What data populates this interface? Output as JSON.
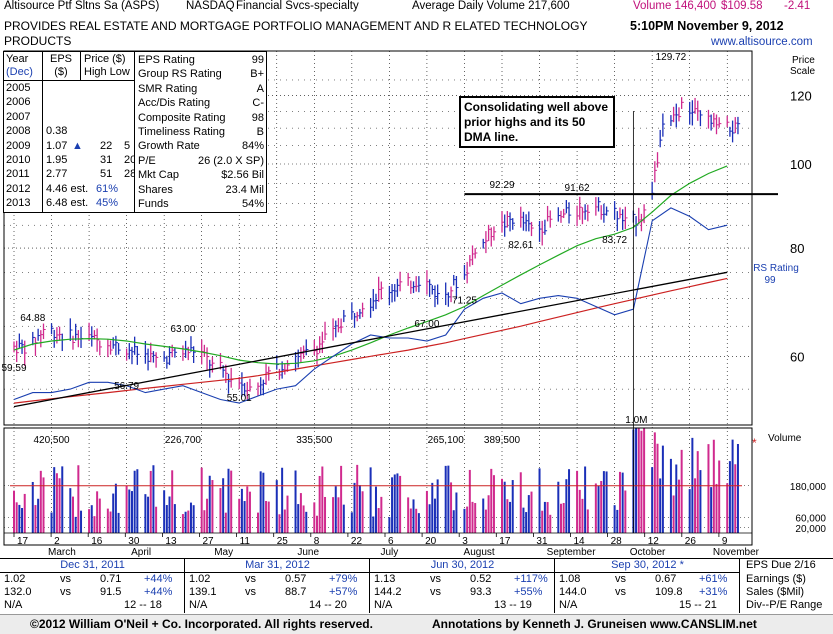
{
  "header": {
    "company": "Altisource Ptf Sltns Sa (ASPS)",
    "exchange": "NASDAQ",
    "industry": "Financial Svcs-specialty",
    "avg_volume": "Average Daily Volume 217,600",
    "volume": "Volume 146,400",
    "price": "$109.58",
    "change": "-2.41",
    "description_line1": "PROVIDES REAL ESTATE AND MORTGAGE PORTFOLIO MANAGEMENT AND R ELATED TECHNOLOGY",
    "description_line2": "PRODUCTS",
    "datetime": "5:10PM November 9, 2012",
    "website": "www.altisource.com"
  },
  "annual_table": {
    "headers": [
      [
        "Year",
        "(Dec)"
      ],
      [
        "EPS",
        "($)"
      ],
      [
        "Price ($)",
        "High Low"
      ]
    ],
    "rows": [
      {
        "year": "2005",
        "eps": "",
        "mark": "",
        "high": "",
        "low": ""
      },
      {
        "year": "2006",
        "eps": "",
        "mark": "",
        "high": "",
        "low": ""
      },
      {
        "year": "2007",
        "eps": "",
        "mark": "",
        "high": "",
        "low": ""
      },
      {
        "year": "2008",
        "eps": "0.38",
        "mark": "",
        "high": "",
        "low": ""
      },
      {
        "year": "2009",
        "eps": "1.07",
        "mark": "▲",
        "high": "22",
        "low": "5"
      },
      {
        "year": "2010",
        "eps": "1.95",
        "mark": "",
        "high": "31",
        "low": "20"
      },
      {
        "year": "2011",
        "eps": "2.77",
        "mark": "",
        "high": "51",
        "low": "28"
      },
      {
        "year": "2012",
        "eps": "4.46 est.",
        "mark": "61%",
        "high": "",
        "low": ""
      },
      {
        "year": "2013",
        "eps": "6.48 est.",
        "mark": "45%",
        "high": "",
        "low": ""
      }
    ]
  },
  "ratings": [
    {
      "label": "EPS Rating",
      "value": "99"
    },
    {
      "label": "Group RS Rating",
      "value": "B+"
    },
    {
      "label": "SMR Rating",
      "value": "A"
    },
    {
      "label": "Acc/Dis Rating",
      "value": "C-"
    },
    {
      "label": "Composite Rating",
      "value": "98"
    },
    {
      "label": "Timeliness Rating",
      "value": "B"
    },
    {
      "label": "Growth Rate",
      "value": "84%"
    },
    {
      "label": "P/E",
      "value": "26 (2.0 X SP)"
    },
    {
      "label": "Mkt Cap",
      "value": "$2.56 Bil"
    },
    {
      "label": "Shares",
      "value": "23.4 Mil"
    },
    {
      "label": "Funds",
      "value": "54%"
    }
  ],
  "annotation": "Consolidating well above prior highs and its 50 DMA line.",
  "chart_data": [
    {
      "type": "line",
      "name": "price-panel",
      "y_axis_title": "Price Scale",
      "ylim": [
        50,
        135
      ],
      "log_scale": true,
      "y_ticks": [
        60,
        80,
        100,
        120
      ],
      "x_start": "2012-02-13",
      "x_end": "2012-11-09",
      "price_series": {
        "dates": [
          "2012-02-13",
          "2012-02-20",
          "2012-02-27",
          "2012-03-05",
          "2012-03-12",
          "2012-03-19",
          "2012-03-26",
          "2012-04-02",
          "2012-04-09",
          "2012-04-16",
          "2012-04-23",
          "2012-04-30",
          "2012-05-07",
          "2012-05-14",
          "2012-05-21",
          "2012-05-28",
          "2012-06-04",
          "2012-06-11",
          "2012-06-18",
          "2012-06-25",
          "2012-07-02",
          "2012-07-09",
          "2012-07-16",
          "2012-07-23",
          "2012-07-30",
          "2012-08-06",
          "2012-08-13",
          "2012-08-20",
          "2012-08-27",
          "2012-09-03",
          "2012-09-10",
          "2012-09-17",
          "2012-09-24",
          "2012-10-01",
          "2012-10-08",
          "2012-10-15",
          "2012-10-22",
          "2012-10-29",
          "2012-11-05"
        ],
        "close": [
          61.5,
          64.5,
          63.5,
          63.0,
          62.5,
          61.5,
          60.5,
          59.5,
          60.5,
          61.0,
          58.5,
          56.5,
          55.0,
          57.5,
          59.0,
          60.5,
          63.0,
          66.5,
          69.0,
          71.5,
          72.5,
          73.5,
          70.5,
          73.0,
          80.0,
          84.5,
          86.5,
          84.0,
          86.0,
          88.0,
          89.5,
          88.5,
          85.5,
          88.0,
          110.0,
          116.0,
          113.0,
          110.0,
          109.58
        ]
      },
      "ma50": [
        61.0,
        62.0,
        62.5,
        62.8,
        62.9,
        62.8,
        62.5,
        62.0,
        61.6,
        61.2,
        60.7,
        60.1,
        59.4,
        59.0,
        58.8,
        58.9,
        59.3,
        60.0,
        61.0,
        62.2,
        63.5,
        64.7,
        65.8,
        67.0,
        68.5,
        70.5,
        72.5,
        74.5,
        76.5,
        78.5,
        80.5,
        82.0,
        83.0,
        84.5,
        88.0,
        92.0,
        95.0,
        97.5,
        99.5
      ],
      "ma200": [
        53.0,
        53.3,
        53.6,
        53.9,
        54.2,
        54.5,
        54.8,
        55.1,
        55.4,
        55.7,
        56.0,
        56.3,
        56.6,
        57.0,
        57.5,
        58.0,
        58.5,
        59.0,
        59.5,
        60.0,
        60.5,
        61.0,
        61.6,
        62.2,
        62.9,
        63.6,
        64.3,
        65.0,
        65.8,
        66.6,
        67.4,
        68.2,
        69.0,
        69.8,
        70.6,
        71.4,
        72.2,
        73.0,
        73.8
      ],
      "rs_line": [
        53.5,
        54.5,
        54.5,
        55.0,
        56.0,
        56.0,
        55.5,
        54.5,
        55.0,
        55.5,
        54.5,
        53.5,
        53.0,
        54.0,
        55.0,
        55.5,
        58.0,
        60.0,
        62.0,
        63.5,
        63.0,
        63.0,
        62.5,
        63.5,
        68.0,
        70.0,
        71.0,
        69.0,
        70.0,
        70.5,
        70.0,
        68.5,
        67.0,
        68.0,
        86.0,
        89.0,
        87.0,
        84.0,
        85.0
      ],
      "price_labels": [
        {
          "text": "64.88",
          "date": "2012-02-20",
          "value": 64.88,
          "pos": "above"
        },
        {
          "text": "59.59",
          "date": "2012-02-13",
          "value": 59.59,
          "pos": "below"
        },
        {
          "text": "63.00",
          "date": "2012-04-16",
          "value": 63.0,
          "pos": "above"
        },
        {
          "text": "56.79",
          "date": "2012-03-26",
          "value": 56.79,
          "pos": "below"
        },
        {
          "text": "55.01",
          "date": "2012-05-07",
          "value": 55.01,
          "pos": "below"
        },
        {
          "text": "67.00",
          "date": "2012-07-16",
          "value": 67.0,
          "pos": "below"
        },
        {
          "text": "71.25",
          "date": "2012-07-30",
          "value": 71.25,
          "pos": "below"
        },
        {
          "text": "92.29",
          "date": "2012-08-13",
          "value": 92.29,
          "pos": "above"
        },
        {
          "text": "82.61",
          "date": "2012-08-20",
          "value": 82.61,
          "pos": "below"
        },
        {
          "text": "91.62",
          "date": "2012-09-10",
          "value": 91.62,
          "pos": "above"
        },
        {
          "text": "83.72",
          "date": "2012-09-24",
          "value": 83.72,
          "pos": "below"
        },
        {
          "text": "129.72",
          "date": "2012-10-15",
          "value": 129.72,
          "pos": "above"
        }
      ],
      "pivot_line": {
        "value": 92.3,
        "from": "2012-07-30",
        "to": "2012-11-09"
      },
      "rs_rating_label": "RS Rating",
      "rs_rating_value": "99",
      "volume_spike_label": "1.0M"
    },
    {
      "type": "bar",
      "name": "volume-panel",
      "y_axis_title": "Volume",
      "ylim": [
        0,
        400000
      ],
      "y_ticks": [
        20000,
        60000,
        180000
      ],
      "y_tick_labels": [
        "20,000",
        "60,000",
        "180,000"
      ],
      "volume_labels": [
        {
          "text": "420,500",
          "date": "2012-02-27"
        },
        {
          "text": "226,700",
          "date": "2012-04-16"
        },
        {
          "text": "335,500",
          "date": "2012-06-04"
        },
        {
          "text": "265,100",
          "date": "2012-07-23"
        },
        {
          "text": "389,500",
          "date": "2012-08-13"
        }
      ],
      "avg_volume_line": 180000
    }
  ],
  "x_axis": {
    "day_ticks": [
      "17",
      "2",
      "16",
      "30",
      "13",
      "27",
      "11",
      "25",
      "8",
      "22",
      "6",
      "20",
      "3",
      "17",
      "31",
      "14",
      "28",
      "12",
      "26",
      "9"
    ],
    "months": [
      "March",
      "April",
      "May",
      "June",
      "July",
      "August",
      "September",
      "October",
      "November"
    ]
  },
  "quarters": [
    {
      "period": "Dec 31, 2011",
      "star": "",
      "rows": [
        [
          "1.02",
          "vs",
          "0.71",
          "+44%"
        ],
        [
          "132.0",
          "vs",
          "91.5",
          "+44%"
        ],
        [
          "N/A",
          "",
          "12 -- 18",
          ""
        ]
      ]
    },
    {
      "period": "Mar 31, 2012",
      "star": "",
      "rows": [
        [
          "1.02",
          "vs",
          "0.57",
          "+79%"
        ],
        [
          "139.1",
          "vs",
          "88.7",
          "+57%"
        ],
        [
          "N/A",
          "",
          "14 -- 20",
          ""
        ]
      ]
    },
    {
      "period": "Jun 30, 2012",
      "star": "",
      "rows": [
        [
          "1.13",
          "vs",
          "0.52",
          "+117%"
        ],
        [
          "144.2",
          "vs",
          "93.3",
          "+55%"
        ],
        [
          "N/A",
          "",
          "13 -- 19",
          ""
        ]
      ]
    },
    {
      "period": "Sep 30, 2012",
      "star": "*",
      "rows": [
        [
          "1.08",
          "vs",
          "0.67",
          "+61%"
        ],
        [
          "144.0",
          "vs",
          "109.8",
          "+31%"
        ],
        [
          "N/A",
          "",
          "15 -- 21",
          ""
        ]
      ]
    }
  ],
  "footer_side": {
    "title": "EPS Due 2/16",
    "labels": [
      "Earnings ($)",
      "Sales ($Mil)",
      "Div--P/E Range"
    ]
  },
  "footer": {
    "copyright": "©2012 William O'Neil + Co. Incorporated. All rights reserved.",
    "annotations": "Annotations by Kenneth J. Gruneisen www.CANSLIM.net"
  },
  "colors": {
    "up": "#1a2fb8",
    "down": "#d02a8e",
    "ma50": "#22aa22",
    "ma200": "#cc2222",
    "rs": "#1a3fb0",
    "trend": "#000000"
  }
}
